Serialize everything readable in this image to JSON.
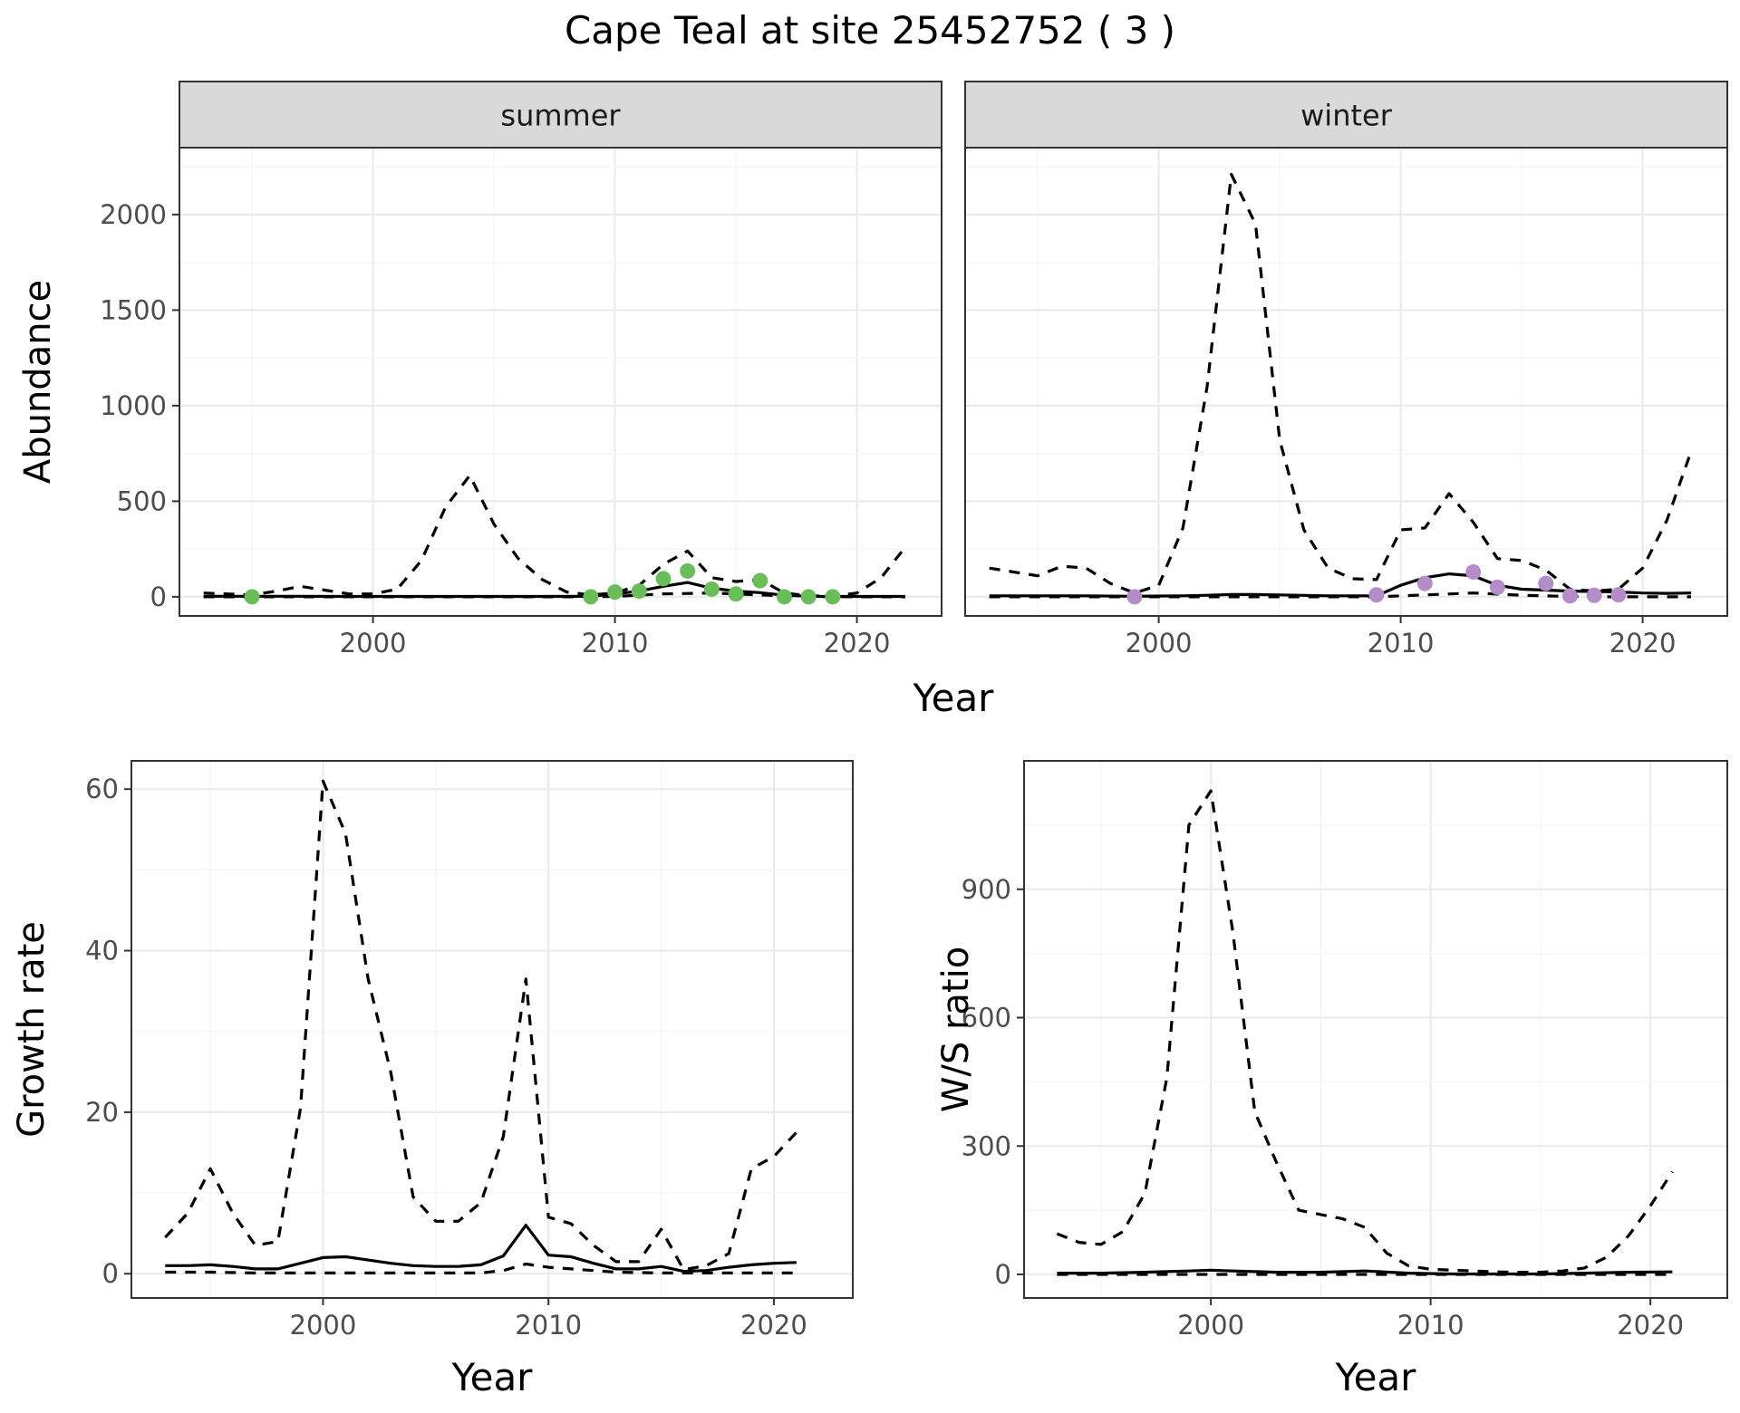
{
  "title": "Cape Teal at site 25452752 ( 3 )",
  "colors": {
    "summer_points": "#6ABE5A",
    "winter_points": "#B48CC8",
    "line": "#000000",
    "strip_fill": "#d9d9d9",
    "grid_major": "#ebebeb",
    "grid_minor": "#f5f5f5"
  },
  "chart_data": [
    {
      "type": "line",
      "panel": "summer",
      "strip_label": "summer",
      "xlabel": "Year",
      "ylabel": "Abundance",
      "xlim": [
        1992,
        2023.5
      ],
      "ylim": [
        -100,
        2350
      ],
      "xticks": [
        2000,
        2010,
        2020
      ],
      "yticks": [
        0,
        500,
        1000,
        1500,
        2000
      ],
      "grid": true,
      "series": [
        {
          "style": "solid",
          "x": [
            1993,
            1995,
            1997,
            1999,
            2001,
            2003,
            2005,
            2007,
            2009,
            2010,
            2011,
            2012,
            2013,
            2014,
            2015,
            2016,
            2017,
            2018,
            2019,
            2020,
            2021,
            2022
          ],
          "y": [
            3,
            3,
            3,
            2,
            2,
            2,
            2,
            2,
            3,
            15,
            30,
            55,
            75,
            45,
            30,
            22,
            8,
            3,
            2,
            2,
            2,
            2
          ]
        },
        {
          "style": "dashed",
          "x": [
            1993,
            1995,
            1996,
            1997,
            1998,
            1999,
            2000,
            2001,
            2002,
            2003,
            2004,
            2005,
            2006,
            2007,
            2008,
            2009,
            2010,
            2011,
            2012,
            2013,
            2014,
            2015,
            2016,
            2017,
            2018,
            2019,
            2020,
            2021,
            2022
          ],
          "y": [
            20,
            10,
            30,
            55,
            35,
            15,
            15,
            40,
            190,
            470,
            635,
            380,
            200,
            90,
            25,
            10,
            20,
            60,
            170,
            240,
            100,
            80,
            90,
            20,
            5,
            3,
            20,
            100,
            260
          ]
        },
        {
          "style": "dashed",
          "x": [
            1993,
            1996,
            1999,
            2002,
            2005,
            2008,
            2010,
            2012,
            2014,
            2016,
            2018,
            2020,
            2022
          ],
          "y": [
            0,
            0,
            0,
            0,
            0,
            0,
            2,
            15,
            20,
            10,
            2,
            0,
            0
          ]
        }
      ],
      "points": {
        "x": [
          1995,
          2009,
          2010,
          2011,
          2012,
          2013,
          2014,
          2015,
          2016,
          2017,
          2018,
          2019
        ],
        "y": [
          0,
          0,
          25,
          30,
          95,
          135,
          40,
          15,
          85,
          0,
          0,
          0
        ]
      }
    },
    {
      "type": "line",
      "panel": "winter",
      "strip_label": "winter",
      "xlabel": "Year",
      "ylabel": "",
      "xlim": [
        1992,
        2023.5
      ],
      "ylim": [
        -100,
        2350
      ],
      "xticks": [
        2000,
        2010,
        2020
      ],
      "yticks": [
        0,
        500,
        1000,
        1500,
        2000
      ],
      "grid": true,
      "series": [
        {
          "style": "solid",
          "x": [
            1993,
            1995,
            1997,
            1999,
            2001,
            2002,
            2003,
            2004,
            2005,
            2007,
            2009,
            2010,
            2011,
            2012,
            2013,
            2014,
            2015,
            2016,
            2017,
            2018,
            2019,
            2020,
            2021,
            2022
          ],
          "y": [
            5,
            5,
            5,
            3,
            5,
            8,
            12,
            12,
            10,
            5,
            5,
            60,
            100,
            120,
            110,
            60,
            40,
            35,
            30,
            28,
            25,
            20,
            18,
            20
          ]
        },
        {
          "style": "dashed",
          "x": [
            1993,
            1994,
            1995,
            1996,
            1997,
            1998,
            1999,
            2000,
            2001,
            2002,
            2003,
            2004,
            2005,
            2006,
            2007,
            2008,
            2009,
            2010,
            2011,
            2012,
            2013,
            2014,
            2015,
            2016,
            2017,
            2018,
            2019,
            2020,
            2021,
            2022
          ],
          "y": [
            150,
            130,
            110,
            160,
            150,
            70,
            20,
            60,
            360,
            1100,
            2210,
            1950,
            820,
            350,
            150,
            95,
            90,
            350,
            360,
            540,
            390,
            200,
            190,
            140,
            40,
            30,
            40,
            150,
            400,
            760
          ]
        },
        {
          "style": "dashed",
          "x": [
            1993,
            1997,
            2001,
            2005,
            2009,
            2011,
            2013,
            2015,
            2017,
            2019,
            2021,
            2022
          ],
          "y": [
            0,
            0,
            0,
            0,
            0,
            10,
            20,
            8,
            2,
            0,
            0,
            0
          ]
        }
      ],
      "points": {
        "x": [
          1999,
          2009,
          2011,
          2013,
          2014,
          2016,
          2017,
          2018,
          2019
        ],
        "y": [
          0,
          10,
          70,
          130,
          50,
          70,
          5,
          8,
          10
        ]
      }
    },
    {
      "type": "line",
      "panel": "growth",
      "xlabel": "Year",
      "ylabel": "Growth rate",
      "xlim": [
        1991.5,
        2023.5
      ],
      "ylim": [
        -3,
        63.5
      ],
      "xticks": [
        2000,
        2010,
        2020
      ],
      "yticks": [
        0,
        20,
        40,
        60
      ],
      "grid": true,
      "series": [
        {
          "style": "solid",
          "x": [
            1993,
            1994,
            1995,
            1996,
            1997,
            1998,
            1999,
            2000,
            2001,
            2002,
            2003,
            2004,
            2005,
            2006,
            2007,
            2008,
            2009,
            2010,
            2011,
            2012,
            2013,
            2014,
            2015,
            2016,
            2017,
            2018,
            2019,
            2020,
            2021
          ],
          "y": [
            1.0,
            1.0,
            1.1,
            0.9,
            0.6,
            0.6,
            1.3,
            2.0,
            2.1,
            1.7,
            1.3,
            1.0,
            0.9,
            0.9,
            1.1,
            2.2,
            6.0,
            2.3,
            2.1,
            1.3,
            0.6,
            0.6,
            0.9,
            0.3,
            0.4,
            0.8,
            1.1,
            1.3,
            1.4
          ]
        },
        {
          "style": "dashed",
          "x": [
            1993,
            1994,
            1995,
            1996,
            1997,
            1998,
            1999,
            2000,
            2001,
            2002,
            2003,
            2004,
            2005,
            2006,
            2007,
            2008,
            2009,
            2010,
            2011,
            2012,
            2013,
            2014,
            2015,
            2016,
            2017,
            2018,
            2019,
            2020,
            2021
          ],
          "y": [
            4.5,
            7.5,
            13,
            7.5,
            3.5,
            4.0,
            20.5,
            61,
            54.5,
            36.5,
            25,
            9.5,
            6.5,
            6.5,
            8.8,
            17,
            36.5,
            7.0,
            6.2,
            3.5,
            1.5,
            1.5,
            5.5,
            0.5,
            1.0,
            2.5,
            13,
            14.5,
            17.5
          ]
        },
        {
          "style": "dashed",
          "x": [
            1993,
            1995,
            1997,
            1999,
            2001,
            2003,
            2005,
            2007,
            2008,
            2009,
            2010,
            2011,
            2012,
            2013,
            2015,
            2017,
            2019,
            2021
          ],
          "y": [
            0.2,
            0.2,
            0.1,
            0.1,
            0.1,
            0.1,
            0.1,
            0.1,
            0.4,
            1.2,
            0.8,
            0.6,
            0.4,
            0.2,
            0.1,
            0.1,
            0.1,
            0.1
          ]
        }
      ]
    },
    {
      "type": "line",
      "panel": "ws_ratio",
      "xlabel": "Year",
      "ylabel": "W/S ratio",
      "xlim": [
        1991.5,
        2023.5
      ],
      "ylim": [
        -55,
        1200
      ],
      "xticks": [
        2000,
        2010,
        2020
      ],
      "yticks": [
        0,
        300,
        600,
        900
      ],
      "grid": true,
      "series": [
        {
          "style": "solid",
          "x": [
            1993,
            1995,
            1997,
            1999,
            2000,
            2001,
            2003,
            2005,
            2007,
            2009,
            2011,
            2013,
            2015,
            2017,
            2019,
            2021
          ],
          "y": [
            3,
            3,
            5,
            8,
            10,
            8,
            5,
            5,
            8,
            3,
            1,
            1,
            1,
            3,
            5,
            6
          ]
        },
        {
          "style": "dashed",
          "x": [
            1993,
            1994,
            1995,
            1996,
            1997,
            1998,
            1999,
            2000,
            2001,
            2002,
            2003,
            2004,
            2005,
            2006,
            2007,
            2008,
            2009,
            2010,
            2011,
            2012,
            2013,
            2014,
            2015,
            2016,
            2017,
            2018,
            2019,
            2020,
            2021
          ],
          "y": [
            95,
            75,
            70,
            100,
            190,
            460,
            1050,
            1130,
            800,
            380,
            260,
            150,
            140,
            130,
            110,
            50,
            20,
            12,
            10,
            8,
            6,
            5,
            5,
            8,
            15,
            40,
            90,
            160,
            240
          ]
        },
        {
          "style": "dashed",
          "x": [
            1993,
            1997,
            2001,
            2005,
            2009,
            2013,
            2017,
            2021
          ],
          "y": [
            0,
            0,
            0,
            0,
            0,
            0,
            0,
            0
          ]
        }
      ]
    }
  ]
}
